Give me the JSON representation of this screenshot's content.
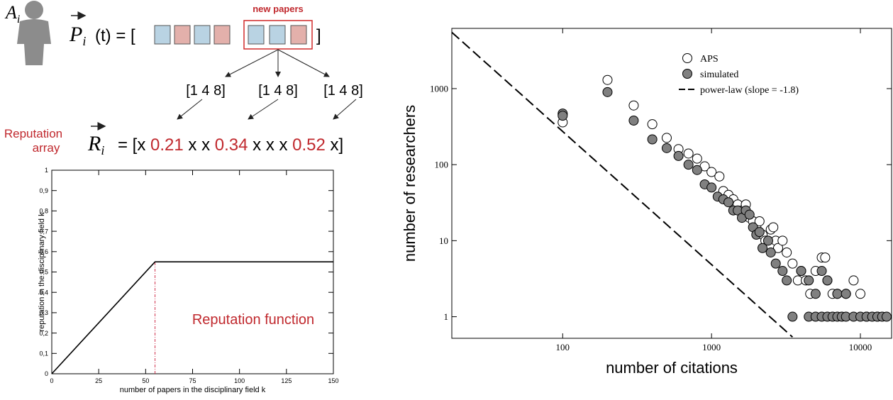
{
  "diagram": {
    "agent": {
      "symbol": "A",
      "index": "i"
    },
    "paper_vector": {
      "symbol": "P",
      "index": "i",
      "rest": "(t) = [",
      "close": "]"
    },
    "new_papers_label": "new papers",
    "field_vectors": [
      "[1 4 8]",
      "[1 4 8]",
      "[1 4 8]"
    ],
    "reputation_label": [
      "Reputation",
      "array"
    ],
    "reputation_vector": {
      "symbol": "R",
      "index": "i",
      "parts": [
        "= [x ",
        "0.21",
        " x x ",
        "0.34",
        " x x x ",
        "0.52",
        " x]"
      ]
    }
  },
  "chart_data": [
    {
      "type": "line",
      "x_label": "number of papers in the disciplinary field k",
      "y_label": "reputation in the disciplinary field k",
      "annotation": "Reputation function",
      "annotation_color": "#c0282d",
      "reference_line_color": "#d0304a",
      "x": [
        0,
        55,
        150
      ],
      "values": [
        0,
        0.55,
        0.55
      ],
      "color": "#000000",
      "xlim": [
        0,
        150
      ],
      "xticks": [
        0,
        25,
        50,
        75,
        100,
        125,
        150
      ],
      "ylim": [
        0,
        1
      ],
      "yticks": [
        0,
        {
          "value": 0.1,
          "label": "0,1"
        },
        {
          "value": 0.2,
          "label": "0,2"
        },
        {
          "value": 0.3,
          "label": "0,3"
        },
        {
          "value": 0.4,
          "label": "0,4"
        },
        {
          "value": 0.5,
          "label": "0,5"
        },
        {
          "value": 0.6,
          "label": "0,6"
        },
        {
          "value": 0.7,
          "label": "0,7"
        },
        {
          "value": 0.8,
          "label": "0,8"
        },
        {
          "value": 0.9,
          "label": "0,9"
        },
        1
      ]
    },
    {
      "type": "scatter",
      "xscale": "log",
      "yscale": "log",
      "legend": "upper right",
      "x_label": "number of citations",
      "y_label": "number of researchers",
      "xlim": [
        18,
        16200
      ],
      "xticks": [
        100,
        1000,
        10000
      ],
      "ylim": [
        0.52,
        6200
      ],
      "yticks": [
        1,
        10,
        100,
        1000
      ],
      "series": [
        {
          "name": "APS",
          "color": "#ffffff",
          "marker": "open",
          "x": [
            100,
            100,
            200,
            300,
            400,
            500,
            600,
            700,
            800,
            900,
            1000,
            1130,
            1200,
            1300,
            1400,
            1500,
            1600,
            1700,
            1800,
            1900,
            2000,
            2100,
            2200,
            2300,
            2500,
            2600,
            2700,
            2800,
            3000,
            3200,
            3500,
            3800,
            4000,
            4300,
            4600,
            5000,
            5500,
            5800,
            6000,
            6500,
            7000,
            8000,
            9000,
            10000,
            11000,
            13000
          ],
          "values": [
            460,
            360,
            1300,
            600,
            340,
            225,
            160,
            140,
            120,
            95,
            80,
            70,
            45,
            40,
            35,
            30,
            25,
            30,
            20,
            18,
            15,
            18,
            12,
            10,
            14,
            15,
            10,
            8,
            10,
            7,
            5,
            3,
            4,
            3,
            2,
            4,
            6,
            6,
            3,
            2,
            2,
            2,
            3,
            2,
            1,
            1
          ]
        },
        {
          "name": "simulated",
          "color": "#808080",
          "marker": "filled",
          "x": [
            100,
            100,
            200,
            300,
            400,
            500,
            600,
            700,
            800,
            900,
            1000,
            1100,
            1200,
            1300,
            1400,
            1500,
            1600,
            1700,
            1800,
            1900,
            2000,
            2100,
            2200,
            2400,
            2500,
            2700,
            3000,
            3200,
            3500,
            4000,
            4500,
            5000,
            5500,
            6000,
            7000,
            8000,
            4500,
            5000,
            5500,
            6000,
            6500,
            7000,
            7500,
            8000,
            9000,
            10000,
            11000,
            12000,
            13000,
            14000,
            15000
          ],
          "values": [
            470,
            440,
            900,
            380,
            215,
            165,
            130,
            100,
            85,
            55,
            50,
            38,
            35,
            32,
            25,
            25,
            20,
            25,
            22,
            15,
            12,
            13,
            8,
            10,
            7,
            5,
            4,
            3,
            1,
            4,
            3,
            2,
            4,
            3,
            2,
            2,
            1,
            1,
            1,
            1,
            1,
            1,
            1,
            1,
            1,
            1,
            1,
            1,
            1,
            1,
            1
          ]
        },
        {
          "name": "power-law (slope = -1.8)",
          "color": "#000000",
          "marker": "dashed-line",
          "x": [
            18,
            3500
          ],
          "values": [
            5500,
            0.54
          ]
        }
      ]
    }
  ]
}
